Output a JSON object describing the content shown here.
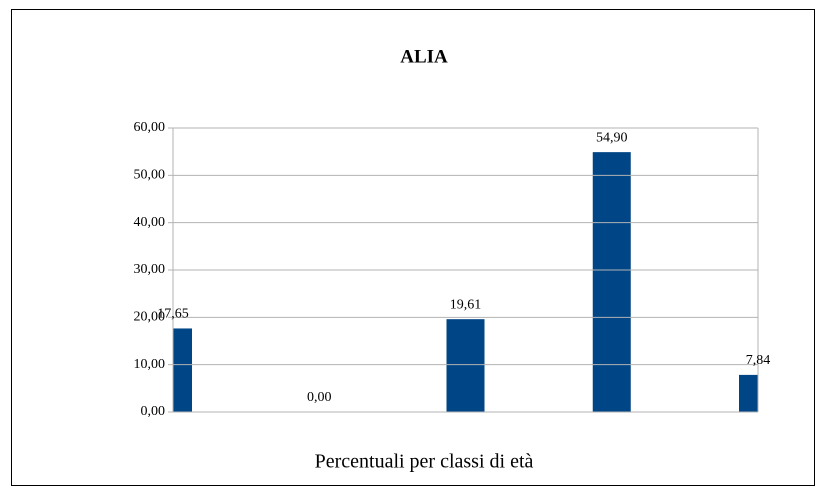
{
  "chart_data": {
    "type": "bar",
    "title": "ALIA",
    "x_label": "Percentuali per classi di età",
    "categories": [
      null,
      null,
      null,
      null,
      null
    ],
    "values": [
      17.65,
      0,
      19.61,
      54.9,
      7.84
    ],
    "value_labels": [
      "17,65",
      "0,00",
      "19,61",
      "54,90",
      "7,84"
    ],
    "color": "#004586",
    "ylim": [
      0,
      60
    ],
    "yticks": [
      {
        "value": 0,
        "label": "0,00"
      },
      {
        "value": 10,
        "label": "10,00"
      },
      {
        "value": 20,
        "label": "20,00"
      },
      {
        "value": 30,
        "label": "30,00"
      },
      {
        "value": 40,
        "label": "40,00"
      },
      {
        "value": 50,
        "label": "50,00"
      },
      {
        "value": 60,
        "label": "60,00"
      }
    ],
    "grid": true
  }
}
